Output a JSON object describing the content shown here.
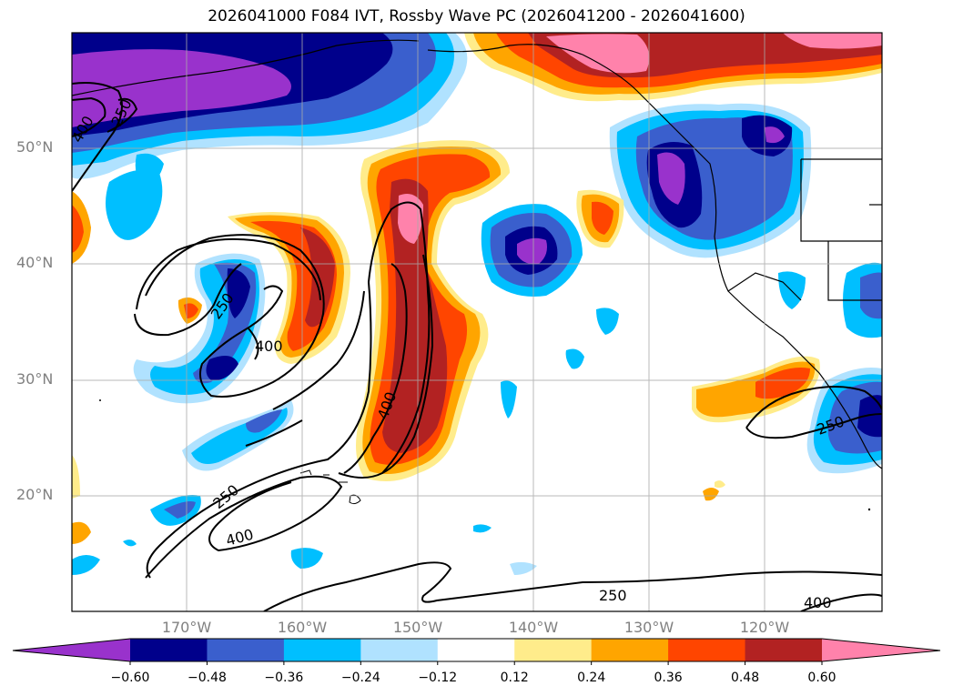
{
  "title": "2026041000 F084 IVT, Rossby Wave PC (2026041200 - 2026041600)",
  "lat_labels": [
    "50°N",
    "40°N",
    "30°N",
    "20°N"
  ],
  "lon_labels": [
    "170°W",
    "160°W",
    "150°W",
    "140°W",
    "130°W",
    "120°W"
  ],
  "contour_labels": [
    "400",
    "250",
    "250",
    "400",
    "400",
    "250",
    "400",
    "250",
    "250",
    "400"
  ],
  "colorbar": {
    "ticks": [
      "−0.60",
      "−0.48",
      "−0.36",
      "−0.24",
      "−0.12",
      "0.12",
      "0.24",
      "0.36",
      "0.48",
      "0.60"
    ],
    "colors": [
      "#9932cc",
      "#00008b",
      "#3a5fcd",
      "#00bfff",
      "#b0e2ff",
      "#ffffff",
      "#ffec8b",
      "#ffa500",
      "#ff4500",
      "#b22222",
      "#ff82ab"
    ]
  }
}
